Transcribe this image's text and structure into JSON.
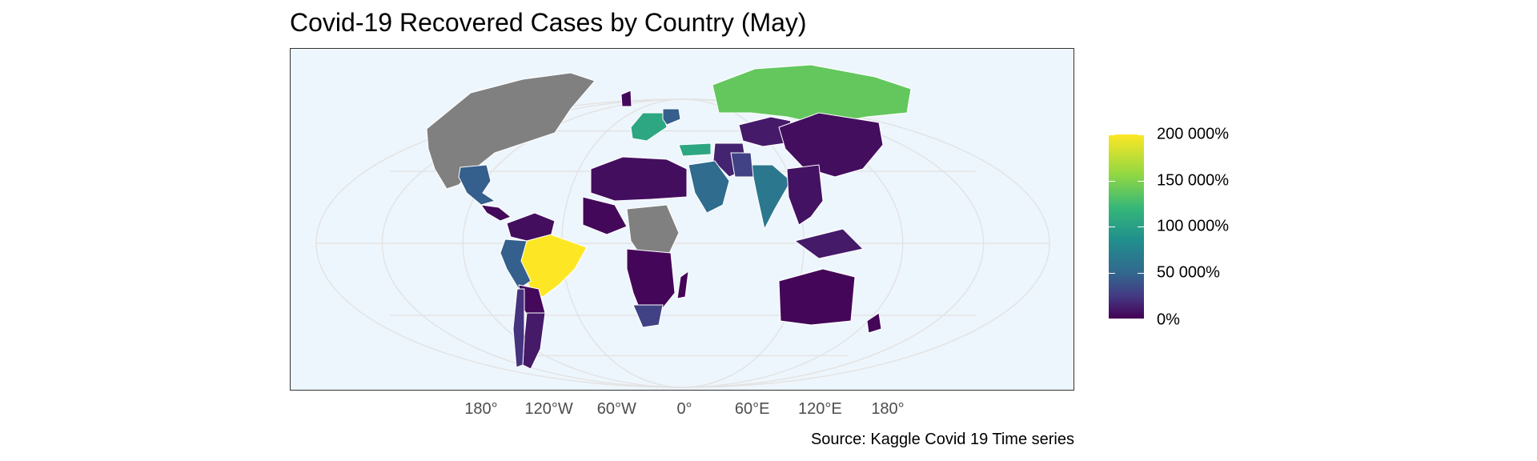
{
  "title": "Covid-19 Recovered Cases by Country (May)",
  "source": "Source: Kaggle Covid 19 Time series",
  "x_axis": {
    "ticks": [
      {
        "label": "180°",
        "lon": -180
      },
      {
        "label": "120°W",
        "lon": -120
      },
      {
        "label": "60°W",
        "lon": -60
      },
      {
        "label": "0°",
        "lon": 0
      },
      {
        "label": "60°E",
        "lon": 60
      },
      {
        "label": "120°E",
        "lon": 120
      },
      {
        "label": "180°",
        "lon": 180
      }
    ]
  },
  "legend": {
    "labels": [
      {
        "label": "200 000%",
        "value": 200000
      },
      {
        "label": "150 000%",
        "value": 150000
      },
      {
        "label": "100 000%",
        "value": 100000
      },
      {
        "label": "50 000%",
        "value": 50000
      },
      {
        "label": "0%",
        "value": 0
      }
    ],
    "colors": [
      "#440154",
      "#443983",
      "#31688e",
      "#21908d",
      "#35b779",
      "#90d743",
      "#fde725"
    ],
    "na_color": "#808080"
  },
  "colors": {
    "ocean": "#eef6fd",
    "graticule": "#e3e3e3",
    "border": "#ffffff"
  },
  "regions": [
    {
      "name": "Canada / USA / Greenland",
      "level": "na"
    },
    {
      "name": "Mexico",
      "level": 60000
    },
    {
      "name": "Central America",
      "level": 5000
    },
    {
      "name": "Colombia / Venezuela",
      "level": 8000
    },
    {
      "name": "Brazil",
      "level": 200000
    },
    {
      "name": "Peru",
      "level": 60000
    },
    {
      "name": "Bolivia / Paraguay",
      "level": 5000
    },
    {
      "name": "Argentina",
      "level": 15000
    },
    {
      "name": "Chile",
      "level": 30000
    },
    {
      "name": "Russia",
      "level": 150000
    },
    {
      "name": "Spain / France",
      "level": 120000
    },
    {
      "name": "United Kingdom",
      "level": 5000
    },
    {
      "name": "Germany",
      "level": 60000
    },
    {
      "name": "Turkey",
      "level": 120000
    },
    {
      "name": "Iran",
      "level": 20000
    },
    {
      "name": "Saudi Arabia",
      "level": 70000
    },
    {
      "name": "India",
      "level": 80000
    },
    {
      "name": "Pakistan",
      "level": 40000
    },
    {
      "name": "Kazakhstan",
      "level": 15000
    },
    {
      "name": "China / Mongolia",
      "level": 8000
    },
    {
      "name": "North Africa",
      "level": 8000
    },
    {
      "name": "West Africa",
      "level": 4000
    },
    {
      "name": "Central Africa",
      "level": "na"
    },
    {
      "name": "Southern Africa",
      "level": 3000
    },
    {
      "name": "South Africa",
      "level": 40000
    },
    {
      "name": "Madagascar",
      "level": 2000
    },
    {
      "name": "Southeast Asia",
      "level": 10000
    },
    {
      "name": "Indonesia",
      "level": 15000
    },
    {
      "name": "Australia",
      "level": 3000
    },
    {
      "name": "New Zealand",
      "level": 3000
    }
  ]
}
